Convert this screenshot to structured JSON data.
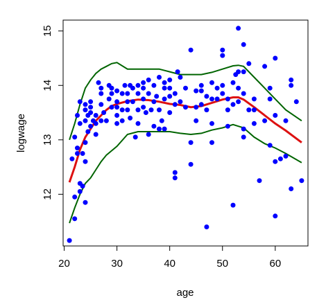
{
  "chart_data": {
    "type": "scatter",
    "xlabel": "age",
    "ylabel": "logwage",
    "xlim": [
      19.8,
      66.2
    ],
    "ylim": [
      11.05,
      15.2
    ],
    "x_ticks": [
      20,
      30,
      40,
      50,
      60
    ],
    "y_ticks": [
      12,
      13,
      14,
      15
    ],
    "grid": false,
    "colors": {
      "points": "#0000ff",
      "fit": "#dd1111",
      "band": "#006400",
      "frame": "#000000"
    },
    "points": [
      [
        21.0,
        11.15
      ],
      [
        21.5,
        12.65
      ],
      [
        22.0,
        11.55
      ],
      [
        22.0,
        11.95
      ],
      [
        22.5,
        12.85
      ],
      [
        22.5,
        12.75
      ],
      [
        22.0,
        13.05
      ],
      [
        22.5,
        13.45
      ],
      [
        23.0,
        12.05
      ],
      [
        23.0,
        12.2
      ],
      [
        23.0,
        13.3
      ],
      [
        23.0,
        13.7
      ],
      [
        23.5,
        12.15
      ],
      [
        23.5,
        12.75
      ],
      [
        24.0,
        11.85
      ],
      [
        24.0,
        12.95
      ],
      [
        24.0,
        13.35
      ],
      [
        24.0,
        13.55
      ],
      [
        24.0,
        13.65
      ],
      [
        24.5,
        13.15
      ],
      [
        24.5,
        13.45
      ],
      [
        24.0,
        12.6
      ],
      [
        25.0,
        13.25
      ],
      [
        25.0,
        13.5
      ],
      [
        25.0,
        13.6
      ],
      [
        25.0,
        13.7
      ],
      [
        25.5,
        13.35
      ],
      [
        26.0,
        13.1
      ],
      [
        26.0,
        13.3
      ],
      [
        26.0,
        13.45
      ],
      [
        26.5,
        14.05
      ],
      [
        27.0,
        13.35
      ],
      [
        27.0,
        13.65
      ],
      [
        27.0,
        13.85
      ],
      [
        27.0,
        13.95
      ],
      [
        27.5,
        13.5
      ],
      [
        28.0,
        13.35
      ],
      [
        28.5,
        13.75
      ],
      [
        28.5,
        14.0
      ],
      [
        29.0,
        13.6
      ],
      [
        29.0,
        13.85
      ],
      [
        29.0,
        13.95
      ],
      [
        30.0,
        13.3
      ],
      [
        30.0,
        13.45
      ],
      [
        30.0,
        13.6
      ],
      [
        30.0,
        13.7
      ],
      [
        30.0,
        13.9
      ],
      [
        31.0,
        13.35
      ],
      [
        31.0,
        13.55
      ],
      [
        31.0,
        13.85
      ],
      [
        31.5,
        14.0
      ],
      [
        32.0,
        13.55
      ],
      [
        32.0,
        13.7
      ],
      [
        32.0,
        13.85
      ],
      [
        32.5,
        13.4
      ],
      [
        32.5,
        14.0
      ],
      [
        33.0,
        13.7
      ],
      [
        33.0,
        13.95
      ],
      [
        33.5,
        13.05
      ],
      [
        34.0,
        13.3
      ],
      [
        34.0,
        13.55
      ],
      [
        34.0,
        13.85
      ],
      [
        34.0,
        14.0
      ],
      [
        35.0,
        13.6
      ],
      [
        35.0,
        13.75
      ],
      [
        35.0,
        13.95
      ],
      [
        35.0,
        14.05
      ],
      [
        35.5,
        13.5
      ],
      [
        36.0,
        13.1
      ],
      [
        36.0,
        13.85
      ],
      [
        36.0,
        14.1
      ],
      [
        36.5,
        13.55
      ],
      [
        37.0,
        13.25
      ],
      [
        37.0,
        13.7
      ],
      [
        37.0,
        14.0
      ],
      [
        37.5,
        13.8
      ],
      [
        38.0,
        13.2
      ],
      [
        38.0,
        13.55
      ],
      [
        38.0,
        14.15
      ],
      [
        38.5,
        13.35
      ],
      [
        39.0,
        13.75
      ],
      [
        39.0,
        13.95
      ],
      [
        39.0,
        14.05
      ],
      [
        39.0,
        13.2
      ],
      [
        40.0,
        13.5
      ],
      [
        40.0,
        13.8
      ],
      [
        40.0,
        13.95
      ],
      [
        40.0,
        14.1
      ],
      [
        41.0,
        12.4
      ],
      [
        41.0,
        12.3
      ],
      [
        41.0,
        13.65
      ],
      [
        41.0,
        13.85
      ],
      [
        41.5,
        14.25
      ],
      [
        42.0,
        13.7
      ],
      [
        42.0,
        14.15
      ],
      [
        43.0,
        13.95
      ],
      [
        43.0,
        13.6
      ],
      [
        44.0,
        14.65
      ],
      [
        44.0,
        12.55
      ],
      [
        44.0,
        12.95
      ],
      [
        45.0,
        13.6
      ],
      [
        45.0,
        13.9
      ],
      [
        45.0,
        13.35
      ],
      [
        46.0,
        13.65
      ],
      [
        46.0,
        13.9
      ],
      [
        46.0,
        14.0
      ],
      [
        47.0,
        11.4
      ],
      [
        47.0,
        13.55
      ],
      [
        47.0,
        13.8
      ],
      [
        48.0,
        12.95
      ],
      [
        48.0,
        13.3
      ],
      [
        48.0,
        13.75
      ],
      [
        48.0,
        14.05
      ],
      [
        49.0,
        13.75
      ],
      [
        49.0,
        13.95
      ],
      [
        50.0,
        14.55
      ],
      [
        50.0,
        14.65
      ],
      [
        50.0,
        14.0
      ],
      [
        50.0,
        13.85
      ],
      [
        51.0,
        13.25
      ],
      [
        51.0,
        13.55
      ],
      [
        51.0,
        13.75
      ],
      [
        52.0,
        11.8
      ],
      [
        52.0,
        13.65
      ],
      [
        52.0,
        14.05
      ],
      [
        52.5,
        14.2
      ],
      [
        53.0,
        15.05
      ],
      [
        53.0,
        13.7
      ],
      [
        53.0,
        13.95
      ],
      [
        53.0,
        14.25
      ],
      [
        54.0,
        14.75
      ],
      [
        54.0,
        14.25
      ],
      [
        54.0,
        13.85
      ],
      [
        54.0,
        13.05
      ],
      [
        54.0,
        13.2
      ],
      [
        55.0,
        14.4
      ],
      [
        55.0,
        13.55
      ],
      [
        56.0,
        13.55
      ],
      [
        56.0,
        13.75
      ],
      [
        57.0,
        12.25
      ],
      [
        58.0,
        14.35
      ],
      [
        58.0,
        13.35
      ],
      [
        59.0,
        13.95
      ],
      [
        59.0,
        13.75
      ],
      [
        60.0,
        14.5
      ],
      [
        60.0,
        13.45
      ],
      [
        60.0,
        11.6
      ],
      [
        61.0,
        12.65
      ],
      [
        62.0,
        13.35
      ],
      [
        62.0,
        12.7
      ],
      [
        63.0,
        14.1
      ],
      [
        63.0,
        14.0
      ],
      [
        63.0,
        12.1
      ],
      [
        64.0,
        13.7
      ],
      [
        65.0,
        12.25
      ],
      [
        59.0,
        12.9
      ],
      [
        60.0,
        12.6
      ],
      [
        56.0,
        13.3
      ]
    ],
    "fit_x": [
      21,
      22,
      23,
      24,
      25,
      26,
      27,
      28,
      29,
      30,
      32,
      34,
      36,
      38,
      40,
      42,
      44,
      46,
      48,
      50,
      52,
      53,
      54,
      56,
      58,
      60,
      62,
      65
    ],
    "fit_y": [
      12.22,
      12.5,
      12.82,
      13.05,
      13.2,
      13.35,
      13.45,
      13.55,
      13.62,
      13.66,
      13.71,
      13.74,
      13.73,
      13.7,
      13.66,
      13.64,
      13.6,
      13.62,
      13.68,
      13.74,
      13.78,
      13.78,
      13.74,
      13.6,
      13.45,
      13.3,
      13.17,
      12.95
    ],
    "upper_y": [
      13.0,
      13.3,
      13.65,
      13.95,
      14.1,
      14.22,
      14.3,
      14.35,
      14.4,
      14.42,
      14.3,
      14.3,
      14.3,
      14.3,
      14.25,
      14.2,
      14.2,
      14.2,
      14.24,
      14.3,
      14.36,
      14.37,
      14.35,
      14.15,
      13.95,
      13.75,
      13.55,
      13.35
    ],
    "lower_y": [
      11.47,
      11.75,
      12.0,
      12.2,
      12.3,
      12.45,
      12.6,
      12.72,
      12.8,
      12.88,
      13.1,
      13.15,
      13.15,
      13.15,
      13.15,
      13.12,
      13.1,
      13.12,
      13.18,
      13.22,
      13.28,
      13.25,
      13.22,
      13.05,
      12.93,
      12.85,
      12.75,
      12.58
    ]
  }
}
